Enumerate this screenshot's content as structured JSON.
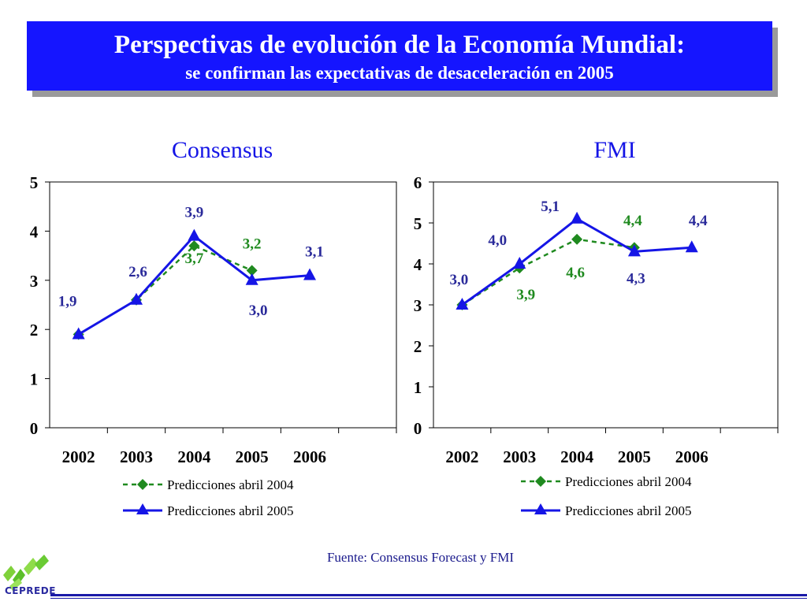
{
  "header": {
    "title": "Perspectivas de evolución de la Economía Mundial:",
    "subtitle": "se confirman las expectativas de desaceleración en 2005"
  },
  "colors": {
    "header_bg": "#1515ff",
    "april_2004": "#1f8a1f",
    "april_2005": "#1515e6",
    "value_label_2005": "#2a2a9a",
    "panel_title": "#1515e6"
  },
  "source": "Fuente: Consensus Forecast y FMI",
  "logo": {
    "text": "CEPREDE"
  },
  "chart_data": [
    {
      "type": "line",
      "title": "Consensus",
      "categories": [
        "2002",
        "2003",
        "2004",
        "2005",
        "2006"
      ],
      "ylim": [
        0,
        5
      ],
      "y_ticks": [
        "0",
        "1",
        "2",
        "3",
        "4",
        "5"
      ],
      "grid": false,
      "legend_position": "bottom",
      "series": [
        {
          "name": "Predicciones abril 2004",
          "values": [
            1.9,
            2.6,
            3.7,
            3.2,
            null
          ],
          "labels": [
            "",
            "",
            "3,7",
            "3,2",
            ""
          ]
        },
        {
          "name": "Predicciones abril 2005",
          "values": [
            1.9,
            2.6,
            3.9,
            3.0,
            3.1
          ],
          "labels": [
            "1,9",
            "2,6",
            "3,9",
            "3,0",
            "3,1"
          ]
        }
      ]
    },
    {
      "type": "line",
      "title": "FMI",
      "categories": [
        "2002",
        "2003",
        "2004",
        "2005",
        "2006"
      ],
      "ylim": [
        0,
        6
      ],
      "y_ticks": [
        "0",
        "1",
        "2",
        "3",
        "4",
        "5",
        "6"
      ],
      "grid": false,
      "legend_position": "bottom",
      "series": [
        {
          "name": "Predicciones abril 2004",
          "values": [
            3.0,
            3.9,
            4.6,
            4.4,
            null
          ],
          "labels": [
            "",
            "3,9",
            "4,6",
            "4,4",
            ""
          ]
        },
        {
          "name": "Predicciones abril 2005",
          "values": [
            3.0,
            4.0,
            5.1,
            4.3,
            4.4
          ],
          "labels": [
            "3,0",
            "4,0",
            "5,1",
            "4,3",
            "4,4"
          ]
        }
      ]
    }
  ]
}
